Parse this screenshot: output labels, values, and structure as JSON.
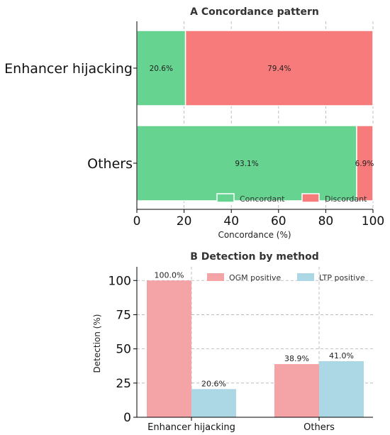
{
  "chart_data": [
    {
      "type": "bar",
      "orientation": "horizontal",
      "stacked": true,
      "title": "A  Concordance pattern",
      "xlabel": "Concordance (%)",
      "ylabel": "",
      "xlim": [
        0,
        100
      ],
      "xticks": [
        0,
        20,
        40,
        60,
        80,
        100
      ],
      "grid": true,
      "legend_position": "bottom-right",
      "categories": [
        "Enhancer hijacking",
        "Others"
      ],
      "series": [
        {
          "name": "Concordant",
          "color": "#66d390",
          "values": [
            20.6,
            93.1
          ],
          "labels": [
            "20.6%",
            "93.1%"
          ]
        },
        {
          "name": "Discordant",
          "color": "#f87b7b",
          "values": [
            79.4,
            6.9
          ],
          "labels": [
            "79.4%",
            "6.9%"
          ]
        }
      ]
    },
    {
      "type": "bar",
      "orientation": "vertical",
      "stacked": false,
      "title": "B  Detection by method",
      "xlabel": "",
      "ylabel": "Detection (%)",
      "ylim": [
        0,
        110
      ],
      "yticks": [
        0,
        25,
        50,
        75,
        100
      ],
      "grid": true,
      "legend_position": "top-right",
      "categories": [
        "Enhancer hijacking",
        "Others"
      ],
      "series": [
        {
          "name": "OGM positive",
          "color": "#f4a4a6",
          "values": [
            100.0,
            38.9
          ],
          "labels": [
            "100.0%",
            "38.9%"
          ]
        },
        {
          "name": "LTP positive",
          "color": "#acd8e5",
          "values": [
            20.6,
            41.0
          ],
          "labels": [
            "20.6%",
            "41.0%"
          ]
        }
      ]
    }
  ]
}
